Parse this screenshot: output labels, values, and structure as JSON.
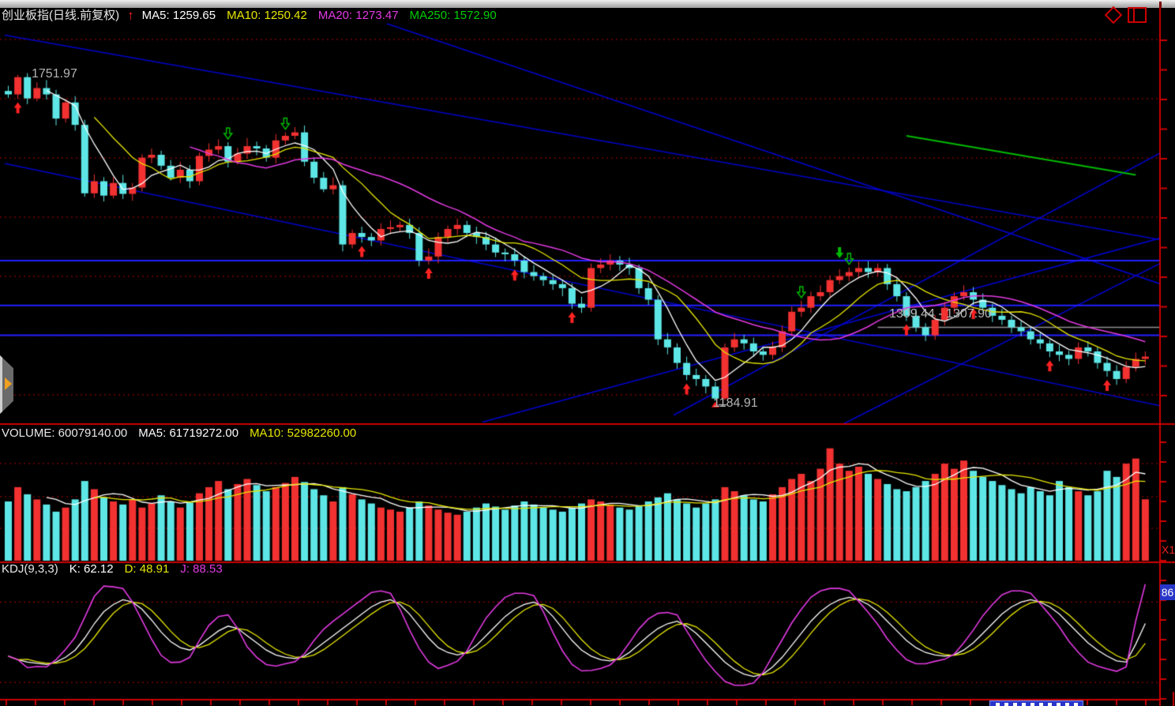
{
  "header": {
    "title": "创业板指(日线.前复权)",
    "signal_arrow": "↑",
    "ma5": "MA5: 1259.65",
    "ma10": "MA10: 1250.42",
    "ma20": "MA20: 1273.47",
    "ma250": "MA250: 1572.90"
  },
  "volume_header": {
    "volume": "VOLUME: 60079140.00",
    "ma5": "MA5: 61719272.00",
    "ma10": "MA10: 52982260.00"
  },
  "kdj_header": {
    "indicator": "KDJ(9,3,3)",
    "k": "K: 62.12",
    "d": "D: 48.91",
    "j": "J: 88.53"
  },
  "annotations": {
    "peak_price": "1751.97",
    "trough_price": "1184.91",
    "price_range": "1309.44 - 1307.90",
    "volume_scale": "X1",
    "kdj_scale": "86"
  },
  "colors": {
    "up": "#f23131",
    "down": "#5ee6e6",
    "ma5": "#ffffff",
    "ma10": "#e6e600",
    "ma20": "#e23ae2",
    "ma250": "#00bb00",
    "grid_dotted": "#b40000",
    "separator": "#cc0000",
    "trendline": "#0000cc",
    "level_line": "#2020ff",
    "current_price": "#909090",
    "signal_buy": "#ff2222",
    "signal_sell": "#00bb00"
  },
  "chart_data": [
    {
      "type": "candlestick",
      "title": "创业板指(日线.前复权)",
      "price_axis": {
        "min": 1146,
        "max": 1841
      },
      "marked_high": 1751.97,
      "marked_low": 1184.91,
      "ma_periods": [
        5,
        10,
        20
      ],
      "ma250_segment": {
        "i1": 94,
        "p1": 1646,
        "i2": 118,
        "p2": 1578
      },
      "current_price_line": {
        "price": 1313,
        "from_index": 91
      },
      "horizontal_levels": [
        1429,
        1351,
        1299
      ],
      "trendlines": [
        [
          0,
          1821,
          121,
          1464
        ],
        [
          0,
          1598,
          121,
          1175
        ],
        [
          40,
          1841,
          121,
          1386
        ],
        [
          50,
          1148,
          121,
          1470
        ],
        [
          70,
          1160,
          121,
          1620
        ],
        [
          86,
          1130,
          121,
          1428
        ]
      ],
      "signals": {
        "buy_indices": [
          1,
          37,
          44,
          53,
          59,
          71,
          94,
          101,
          109,
          115
        ],
        "sell_hollow_indices": [
          23,
          29,
          83,
          88
        ],
        "sell_solid_indices": [
          87
        ]
      },
      "candles": [
        [
          1724,
          1733,
          1712,
          1718
        ],
        [
          1718,
          1751.97,
          1710,
          1748
        ],
        [
          1748,
          1755,
          1701,
          1711
        ],
        [
          1711,
          1739,
          1706,
          1729
        ],
        [
          1729,
          1743,
          1709,
          1718
        ],
        [
          1718,
          1726,
          1664,
          1676
        ],
        [
          1676,
          1710,
          1669,
          1704
        ],
        [
          1704,
          1715,
          1655,
          1665
        ],
        [
          1665,
          1674,
          1540,
          1546
        ],
        [
          1546,
          1579,
          1538,
          1567
        ],
        [
          1567,
          1574,
          1532,
          1542
        ],
        [
          1542,
          1574,
          1537,
          1564
        ],
        [
          1564,
          1578,
          1536,
          1545
        ],
        [
          1545,
          1564,
          1533,
          1556
        ],
        [
          1556,
          1614,
          1549,
          1608
        ],
        [
          1608,
          1624,
          1598,
          1613
        ],
        [
          1613,
          1620,
          1587,
          1594
        ],
        [
          1594,
          1604,
          1568,
          1573
        ],
        [
          1573,
          1601,
          1564,
          1587
        ],
        [
          1587,
          1595,
          1555,
          1567
        ],
        [
          1567,
          1617,
          1560,
          1611
        ],
        [
          1611,
          1633,
          1601,
          1622
        ],
        [
          1622,
          1640,
          1614,
          1628
        ],
        [
          1628,
          1635,
          1591,
          1601
        ],
        [
          1601,
          1625,
          1596,
          1615
        ],
        [
          1615,
          1642,
          1606,
          1628
        ],
        [
          1628,
          1636,
          1612,
          1624
        ],
        [
          1624,
          1630,
          1601,
          1608
        ],
        [
          1608,
          1649,
          1598,
          1638
        ],
        [
          1638,
          1652,
          1630,
          1646
        ],
        [
          1646,
          1661,
          1640,
          1652
        ],
        [
          1652,
          1664,
          1593,
          1601
        ],
        [
          1601,
          1608,
          1563,
          1573
        ],
        [
          1573,
          1583,
          1548,
          1553
        ],
        [
          1553,
          1574,
          1544,
          1560
        ],
        [
          1560,
          1568,
          1445,
          1457
        ],
        [
          1457,
          1483,
          1450,
          1477
        ],
        [
          1477,
          1488,
          1460,
          1470
        ],
        [
          1470,
          1477,
          1454,
          1464
        ],
        [
          1464,
          1494,
          1455,
          1484
        ],
        [
          1484,
          1499,
          1475,
          1487
        ],
        [
          1487,
          1497,
          1479,
          1491
        ],
        [
          1491,
          1502,
          1467,
          1477
        ],
        [
          1477,
          1487,
          1419,
          1429
        ],
        [
          1429,
          1450,
          1422,
          1436
        ],
        [
          1436,
          1478,
          1424,
          1470
        ],
        [
          1470,
          1490,
          1461,
          1484
        ],
        [
          1484,
          1502,
          1474,
          1491
        ],
        [
          1491,
          1498,
          1470,
          1477
        ],
        [
          1477,
          1488,
          1458,
          1470
        ],
        [
          1470,
          1479,
          1447,
          1457
        ],
        [
          1457,
          1469,
          1435,
          1443
        ],
        [
          1443,
          1450,
          1428,
          1440
        ],
        [
          1440,
          1451,
          1419,
          1429
        ],
        [
          1429,
          1437,
          1398,
          1409
        ],
        [
          1409,
          1421,
          1394,
          1402
        ],
        [
          1402,
          1408,
          1385,
          1395
        ],
        [
          1395,
          1406,
          1378,
          1388
        ],
        [
          1388,
          1395,
          1367,
          1381
        ],
        [
          1381,
          1389,
          1345,
          1354
        ],
        [
          1354,
          1366,
          1338,
          1347
        ],
        [
          1347,
          1424,
          1340,
          1416
        ],
        [
          1416,
          1433,
          1407,
          1422
        ],
        [
          1422,
          1440,
          1412,
          1429
        ],
        [
          1429,
          1437,
          1411,
          1422
        ],
        [
          1422,
          1434,
          1404,
          1416
        ],
        [
          1416,
          1422,
          1371,
          1381
        ],
        [
          1381,
          1391,
          1352,
          1361
        ],
        [
          1361,
          1369,
          1282,
          1292
        ],
        [
          1292,
          1303,
          1266,
          1278
        ],
        [
          1278,
          1285,
          1241,
          1251
        ],
        [
          1251,
          1262,
          1221,
          1230
        ],
        [
          1230,
          1241,
          1211,
          1223
        ],
        [
          1223,
          1230,
          1198,
          1210
        ],
        [
          1210,
          1218,
          1184.91,
          1189
        ],
        [
          1189,
          1285,
          1186,
          1278
        ],
        [
          1278,
          1303,
          1270,
          1292
        ],
        [
          1292,
          1300,
          1274,
          1285
        ],
        [
          1285,
          1295,
          1262,
          1271
        ],
        [
          1271,
          1279,
          1255,
          1265
        ],
        [
          1265,
          1288,
          1257,
          1278
        ],
        [
          1278,
          1316,
          1270,
          1306
        ],
        [
          1306,
          1349,
          1298,
          1340
        ],
        [
          1340,
          1359,
          1331,
          1347
        ],
        [
          1347,
          1375,
          1338,
          1367
        ],
        [
          1367,
          1386,
          1359,
          1374
        ],
        [
          1374,
          1403,
          1366,
          1395
        ],
        [
          1395,
          1414,
          1388,
          1402
        ],
        [
          1402,
          1417,
          1393,
          1409
        ],
        [
          1409,
          1427,
          1401,
          1416
        ],
        [
          1416,
          1428,
          1399,
          1409
        ],
        [
          1409,
          1424,
          1402,
          1416
        ],
        [
          1416,
          1423,
          1378,
          1388
        ],
        [
          1388,
          1398,
          1358,
          1367
        ],
        [
          1367,
          1374,
          1324,
          1333
        ],
        [
          1333,
          1345,
          1305,
          1313
        ],
        [
          1313,
          1320,
          1289,
          1299
        ],
        [
          1299,
          1334,
          1291,
          1326
        ],
        [
          1326,
          1357,
          1316,
          1347
        ],
        [
          1347,
          1374,
          1337,
          1367
        ],
        [
          1367,
          1386,
          1360,
          1374
        ],
        [
          1374,
          1383,
          1352,
          1361
        ],
        [
          1361,
          1372,
          1340,
          1347
        ],
        [
          1347,
          1354,
          1322,
          1333
        ],
        [
          1333,
          1345,
          1317,
          1326
        ],
        [
          1326,
          1333,
          1303,
          1313
        ],
        [
          1313,
          1324,
          1297,
          1306
        ],
        [
          1306,
          1313,
          1283,
          1292
        ],
        [
          1292,
          1303,
          1275,
          1285
        ],
        [
          1285,
          1291,
          1261,
          1271
        ],
        [
          1271,
          1282,
          1254,
          1265
        ],
        [
          1265,
          1272,
          1247,
          1258
        ],
        [
          1258,
          1287,
          1249,
          1278
        ],
        [
          1278,
          1289,
          1262,
          1271
        ],
        [
          1271,
          1278,
          1241,
          1251
        ],
        [
          1251,
          1262,
          1227,
          1237
        ],
        [
          1237,
          1247,
          1213,
          1223
        ],
        [
          1223,
          1254,
          1216,
          1244
        ],
        [
          1244,
          1269,
          1236,
          1258
        ],
        [
          1258,
          1271,
          1248,
          1262
        ]
      ]
    },
    {
      "type": "bar",
      "name": "VOLUME",
      "last_value": 60079140.0,
      "ma5_last": 61719272.0,
      "ma10_last": 52982260.0,
      "unit": "millions",
      "ma_periods": [
        5,
        10
      ],
      "values": [
        58,
        72,
        65,
        60,
        55,
        48,
        52,
        60,
        78,
        70,
        62,
        58,
        55,
        60,
        52,
        56,
        64,
        58,
        52,
        57,
        66,
        72,
        78,
        70,
        75,
        80,
        74,
        68,
        72,
        76,
        82,
        77,
        70,
        64,
        58,
        72,
        65,
        60,
        56,
        52,
        50,
        48,
        52,
        58,
        54,
        50,
        47,
        45,
        48,
        52,
        56,
        53,
        50,
        54,
        58,
        55,
        52,
        50,
        48,
        52,
        56,
        60,
        58,
        55,
        52,
        50,
        54,
        58,
        62,
        66,
        60,
        56,
        52,
        56,
        60,
        72,
        68,
        64,
        60,
        58,
        65,
        72,
        80,
        85,
        78,
        90,
        110,
        95,
        88,
        92,
        85,
        80,
        75,
        70,
        68,
        72,
        78,
        85,
        95,
        90,
        98,
        88,
        82,
        78,
        74,
        70,
        66,
        72,
        68,
        64,
        78,
        72,
        68,
        64,
        68,
        88,
        82,
        95,
        100,
        60.1
      ]
    },
    {
      "type": "line",
      "name": "KDJ(9,3,3)",
      "k_last": 62.12,
      "d_last": 48.91,
      "j_last": 88.53,
      "value_range": [
        0,
        100
      ],
      "guides": [
        80,
        13
      ],
      "k_values": [
        35,
        32,
        30,
        29,
        28,
        30,
        34,
        40,
        50,
        62,
        72,
        78,
        82,
        80,
        74,
        65,
        55,
        47,
        42,
        40,
        44,
        50,
        56,
        60,
        58,
        52,
        46,
        40,
        36,
        34,
        33,
        35,
        40,
        46,
        52,
        58,
        64,
        70,
        76,
        80,
        82,
        78,
        70,
        60,
        50,
        42,
        38,
        36,
        38,
        44,
        52,
        60,
        68,
        74,
        78,
        80,
        76,
        68,
        58,
        48,
        40,
        35,
        32,
        31,
        33,
        38,
        45,
        52,
        58,
        62,
        64,
        60,
        54,
        46,
        38,
        30,
        24,
        20,
        18,
        20,
        26,
        34,
        44,
        54,
        64,
        72,
        78,
        82,
        84,
        82,
        78,
        72,
        64,
        56,
        48,
        42,
        38,
        36,
        35,
        36,
        40,
        46,
        54,
        62,
        70,
        76,
        80,
        82,
        80,
        76,
        70,
        62,
        54,
        46,
        40,
        35,
        31,
        30,
        45,
        62.12
      ]
    }
  ]
}
